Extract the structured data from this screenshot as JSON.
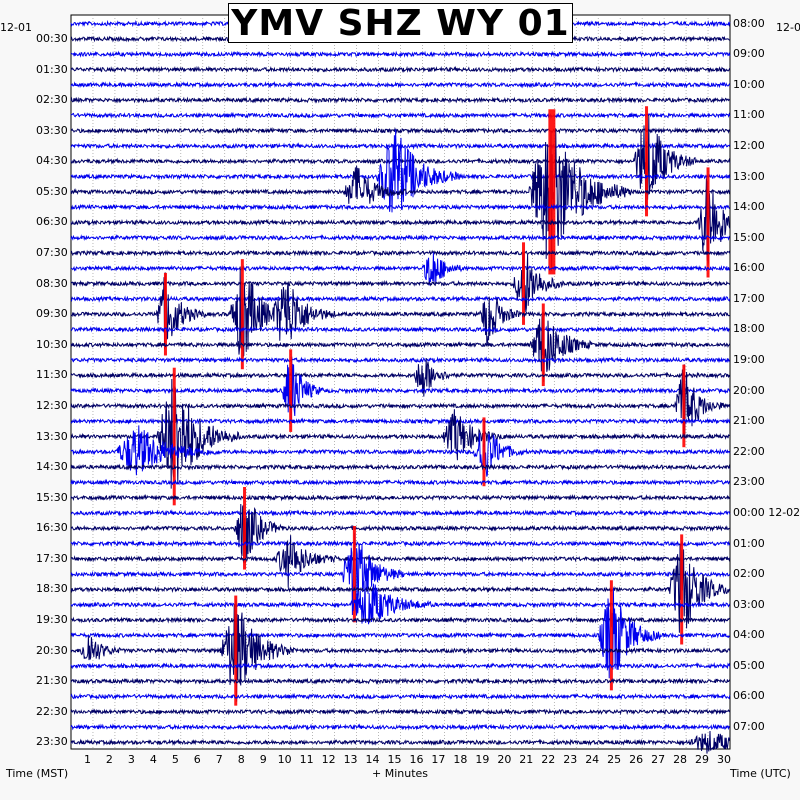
{
  "chart_data": {
    "type": "helicorder",
    "title": "YMV SHZ WY 01",
    "date_left": "12-01",
    "date_right": "12-0",
    "xlabel": "+ Minutes",
    "left_axis_label": "Time (MST)",
    "right_axis_label": "Time (UTC)",
    "x_ticks": [
      1,
      2,
      3,
      4,
      5,
      6,
      7,
      8,
      9,
      10,
      11,
      12,
      13,
      14,
      15,
      16,
      17,
      18,
      19,
      20,
      21,
      22,
      23,
      24,
      25,
      26,
      27,
      28,
      29,
      30
    ],
    "x_range": [
      0,
      30
    ],
    "row_count": 48,
    "rows_per_label": 2,
    "left_labels": [
      "00:30",
      "01:30",
      "02:30",
      "03:30",
      "04:30",
      "05:30",
      "06:30",
      "07:30",
      "08:30",
      "09:30",
      "10:30",
      "11:30",
      "12:30",
      "13:30",
      "14:30",
      "15:30",
      "16:30",
      "17:30",
      "18:30",
      "19:30",
      "20:30",
      "21:30",
      "22:30",
      "23:30"
    ],
    "right_labels": [
      "08:00",
      "09:00",
      "10:00",
      "11:00",
      "12:00",
      "13:00",
      "14:00",
      "15:00",
      "16:00",
      "17:00",
      "18:00",
      "19:00",
      "20:00",
      "21:00",
      "22:00",
      "23:00",
      "00:00 12-02",
      "01:00",
      "02:00",
      "03:00",
      "04:00",
      "05:00",
      "06:00",
      "07:00"
    ],
    "colors": {
      "trace_a": "#000066",
      "trace_b": "#0000ee",
      "clip": "#ff0000"
    },
    "events": [
      {
        "row": 10,
        "minute": 14.7,
        "amp": 4.0,
        "span": 2.0
      },
      {
        "row": 11,
        "minute": 13.0,
        "amp": 2.0,
        "span": 1.5
      },
      {
        "row": 11,
        "minute": 21.8,
        "amp": 6.0,
        "span": 2.5,
        "clipped": true
      },
      {
        "row": 9,
        "minute": 26.2,
        "amp": 4.0,
        "span": 1.5,
        "clipped": true
      },
      {
        "row": 13,
        "minute": 29.0,
        "amp": 4.0,
        "span": 1.2,
        "clipped": true
      },
      {
        "row": 16,
        "minute": 16.4,
        "amp": 1.8,
        "span": 1.0
      },
      {
        "row": 17,
        "minute": 20.6,
        "amp": 3.0,
        "span": 1.2,
        "clipped": true
      },
      {
        "row": 19,
        "minute": 4.3,
        "amp": 3.0,
        "span": 1.2,
        "clipped": true
      },
      {
        "row": 19,
        "minute": 7.8,
        "amp": 4.0,
        "span": 1.5,
        "clipped": true
      },
      {
        "row": 19,
        "minute": 9.8,
        "amp": 3.0,
        "span": 1.5
      },
      {
        "row": 19,
        "minute": 19.0,
        "amp": 2.5,
        "span": 1.0
      },
      {
        "row": 21,
        "minute": 21.5,
        "amp": 3.0,
        "span": 1.5,
        "clipped": true
      },
      {
        "row": 23,
        "minute": 16.0,
        "amp": 1.8,
        "span": 1.0
      },
      {
        "row": 24,
        "minute": 10.0,
        "amp": 3.0,
        "span": 1.0,
        "clipped": true
      },
      {
        "row": 25,
        "minute": 27.9,
        "amp": 3.0,
        "span": 1.2,
        "clipped": true
      },
      {
        "row": 27,
        "minute": 4.7,
        "amp": 5.0,
        "span": 2.0,
        "clipped": true
      },
      {
        "row": 27,
        "minute": 17.5,
        "amp": 2.0,
        "span": 1.5
      },
      {
        "row": 28,
        "minute": 3.0,
        "amp": 2.0,
        "span": 2.5
      },
      {
        "row": 28,
        "minute": 18.8,
        "amp": 2.5,
        "span": 1.2,
        "clipped": true
      },
      {
        "row": 33,
        "minute": 7.9,
        "amp": 3.0,
        "span": 1.2,
        "clipped": true
      },
      {
        "row": 35,
        "minute": 9.9,
        "amp": 2.0,
        "span": 1.5
      },
      {
        "row": 36,
        "minute": 12.9,
        "amp": 3.5,
        "span": 1.5,
        "clipped": true
      },
      {
        "row": 37,
        "minute": 27.8,
        "amp": 4.0,
        "span": 1.5,
        "clipped": true
      },
      {
        "row": 38,
        "minute": 13.5,
        "amp": 2.0,
        "span": 2.0
      },
      {
        "row": 40,
        "minute": 24.6,
        "amp": 4.0,
        "span": 1.5,
        "clipped": true
      },
      {
        "row": 41,
        "minute": 7.5,
        "amp": 4.0,
        "span": 1.8,
        "clipped": true
      },
      {
        "row": 41,
        "minute": 0.8,
        "amp": 1.5,
        "span": 1.0
      },
      {
        "row": 47,
        "minute": 29.0,
        "amp": 0.8,
        "span": 2.5
      }
    ]
  }
}
